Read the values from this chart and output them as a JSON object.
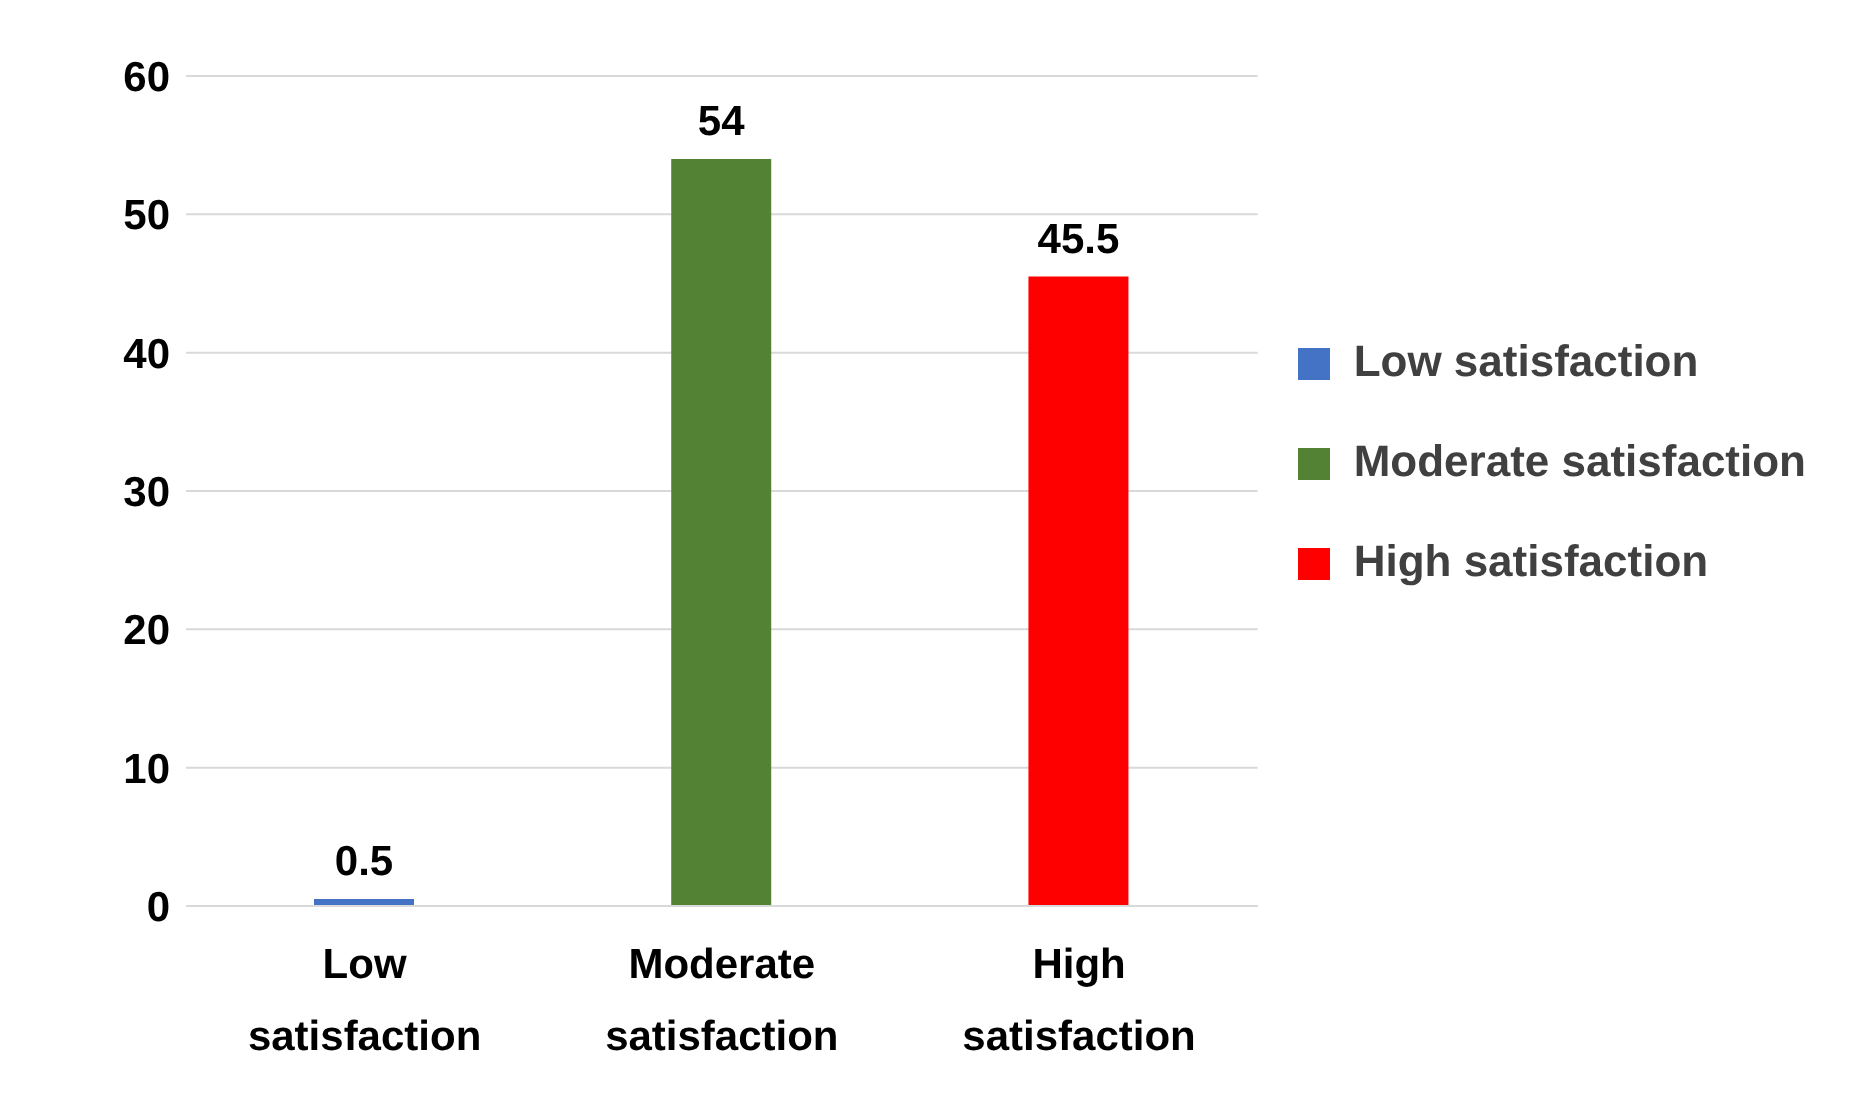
{
  "chart_data": {
    "type": "bar",
    "categories": [
      "Low satisfaction",
      "Moderate satisfaction",
      "High satisfaction"
    ],
    "series": [
      {
        "name": "Low satisfaction",
        "color": "#4472c4",
        "values": [
          0.5,
          null,
          null
        ]
      },
      {
        "name": "Moderate satisfaction",
        "color": "#548235",
        "values": [
          null,
          54,
          null
        ]
      },
      {
        "name": "High satisfaction",
        "color": "#ff0000",
        "values": [
          null,
          null,
          45.5
        ]
      }
    ],
    "stacked": true,
    "ylim": [
      0,
      60
    ],
    "yticks": [
      0,
      10,
      20,
      30,
      40,
      50,
      60
    ],
    "grid": "y",
    "legend": "right",
    "data_labels": true
  }
}
